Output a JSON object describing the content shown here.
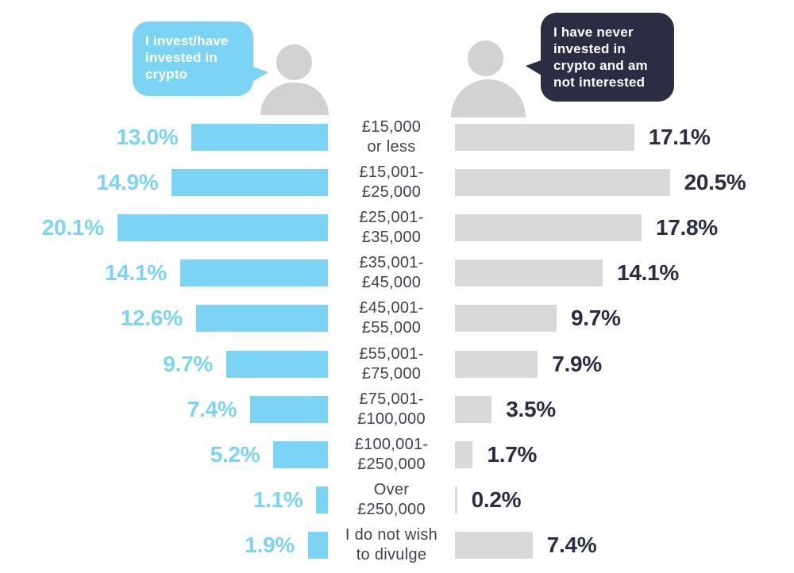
{
  "legend": {
    "invest_bubble": "I invest/have invested in crypto",
    "never_bubble": "I have never invested in crypto and am not interested"
  },
  "colors": {
    "accent_blue": "#7CD4F5",
    "dark_navy": "#2B2D42",
    "bar_gray": "#D9D9D9",
    "person_gray": "#D2D2D2",
    "bracket_text": "#40434C",
    "bubble_text": "#FFFFFF"
  },
  "chart_data": {
    "type": "bar",
    "orientation": "horizontal-diverging",
    "value_unit": "%",
    "xlim_each_side": [
      0,
      20.5
    ],
    "categories": [
      "£15,000 or less",
      "£15,001-£25,000",
      "£25,001-£35,000",
      "£35,001-£45,000",
      "£45,001-£55,000",
      "£55,001-£75,000",
      "£75,001-£100,000",
      "£100,001-£250,000",
      "Over £250,000",
      "I do not wish to divulge"
    ],
    "series": [
      {
        "name": "I invest/have invested in crypto",
        "color": "#7CD4F5",
        "values": [
          13.0,
          14.9,
          20.1,
          14.1,
          12.6,
          9.7,
          7.4,
          5.2,
          1.1,
          1.9
        ]
      },
      {
        "name": "I have never invested in crypto and am not interested",
        "color": "#D9D9D9",
        "values": [
          17.1,
          20.5,
          17.8,
          14.1,
          9.7,
          7.9,
          3.5,
          1.7,
          0.2,
          7.4
        ]
      }
    ],
    "rows": [
      {
        "bracket_line1": "£15,000",
        "bracket_line2": "or less",
        "invest_pct": 13.0,
        "invest_label": "13.0%",
        "never_pct": 17.1,
        "never_label": "17.1%"
      },
      {
        "bracket_line1": "£15,001-",
        "bracket_line2": "£25,000",
        "invest_pct": 14.9,
        "invest_label": "14.9%",
        "never_pct": 20.5,
        "never_label": "20.5%"
      },
      {
        "bracket_line1": "£25,001-",
        "bracket_line2": "£35,000",
        "invest_pct": 20.1,
        "invest_label": "20.1%",
        "never_pct": 17.8,
        "never_label": "17.8%"
      },
      {
        "bracket_line1": "£35,001-",
        "bracket_line2": "£45,000",
        "invest_pct": 14.1,
        "invest_label": "14.1%",
        "never_pct": 14.1,
        "never_label": "14.1%"
      },
      {
        "bracket_line1": "£45,001-",
        "bracket_line2": "£55,000",
        "invest_pct": 12.6,
        "invest_label": "12.6%",
        "never_pct": 9.7,
        "never_label": "9.7%"
      },
      {
        "bracket_line1": "£55,001-",
        "bracket_line2": "£75,000",
        "invest_pct": 9.7,
        "invest_label": "9.7%",
        "never_pct": 7.9,
        "never_label": "7.9%"
      },
      {
        "bracket_line1": "£75,001-",
        "bracket_line2": "£100,000",
        "invest_pct": 7.4,
        "invest_label": "7.4%",
        "never_pct": 3.5,
        "never_label": "3.5%"
      },
      {
        "bracket_line1": "£100,001-",
        "bracket_line2": "£250,000",
        "invest_pct": 5.2,
        "invest_label": "5.2%",
        "never_pct": 1.7,
        "never_label": "1.7%"
      },
      {
        "bracket_line1": "Over",
        "bracket_line2": "£250,000",
        "invest_pct": 1.1,
        "invest_label": "1.1%",
        "never_pct": 0.2,
        "never_label": "0.2%"
      },
      {
        "bracket_line1": "I do not wish",
        "bracket_line2": "to divulge",
        "invest_pct": 1.9,
        "invest_label": "1.9%",
        "never_pct": 7.4,
        "never_label": "7.4%"
      }
    ]
  }
}
